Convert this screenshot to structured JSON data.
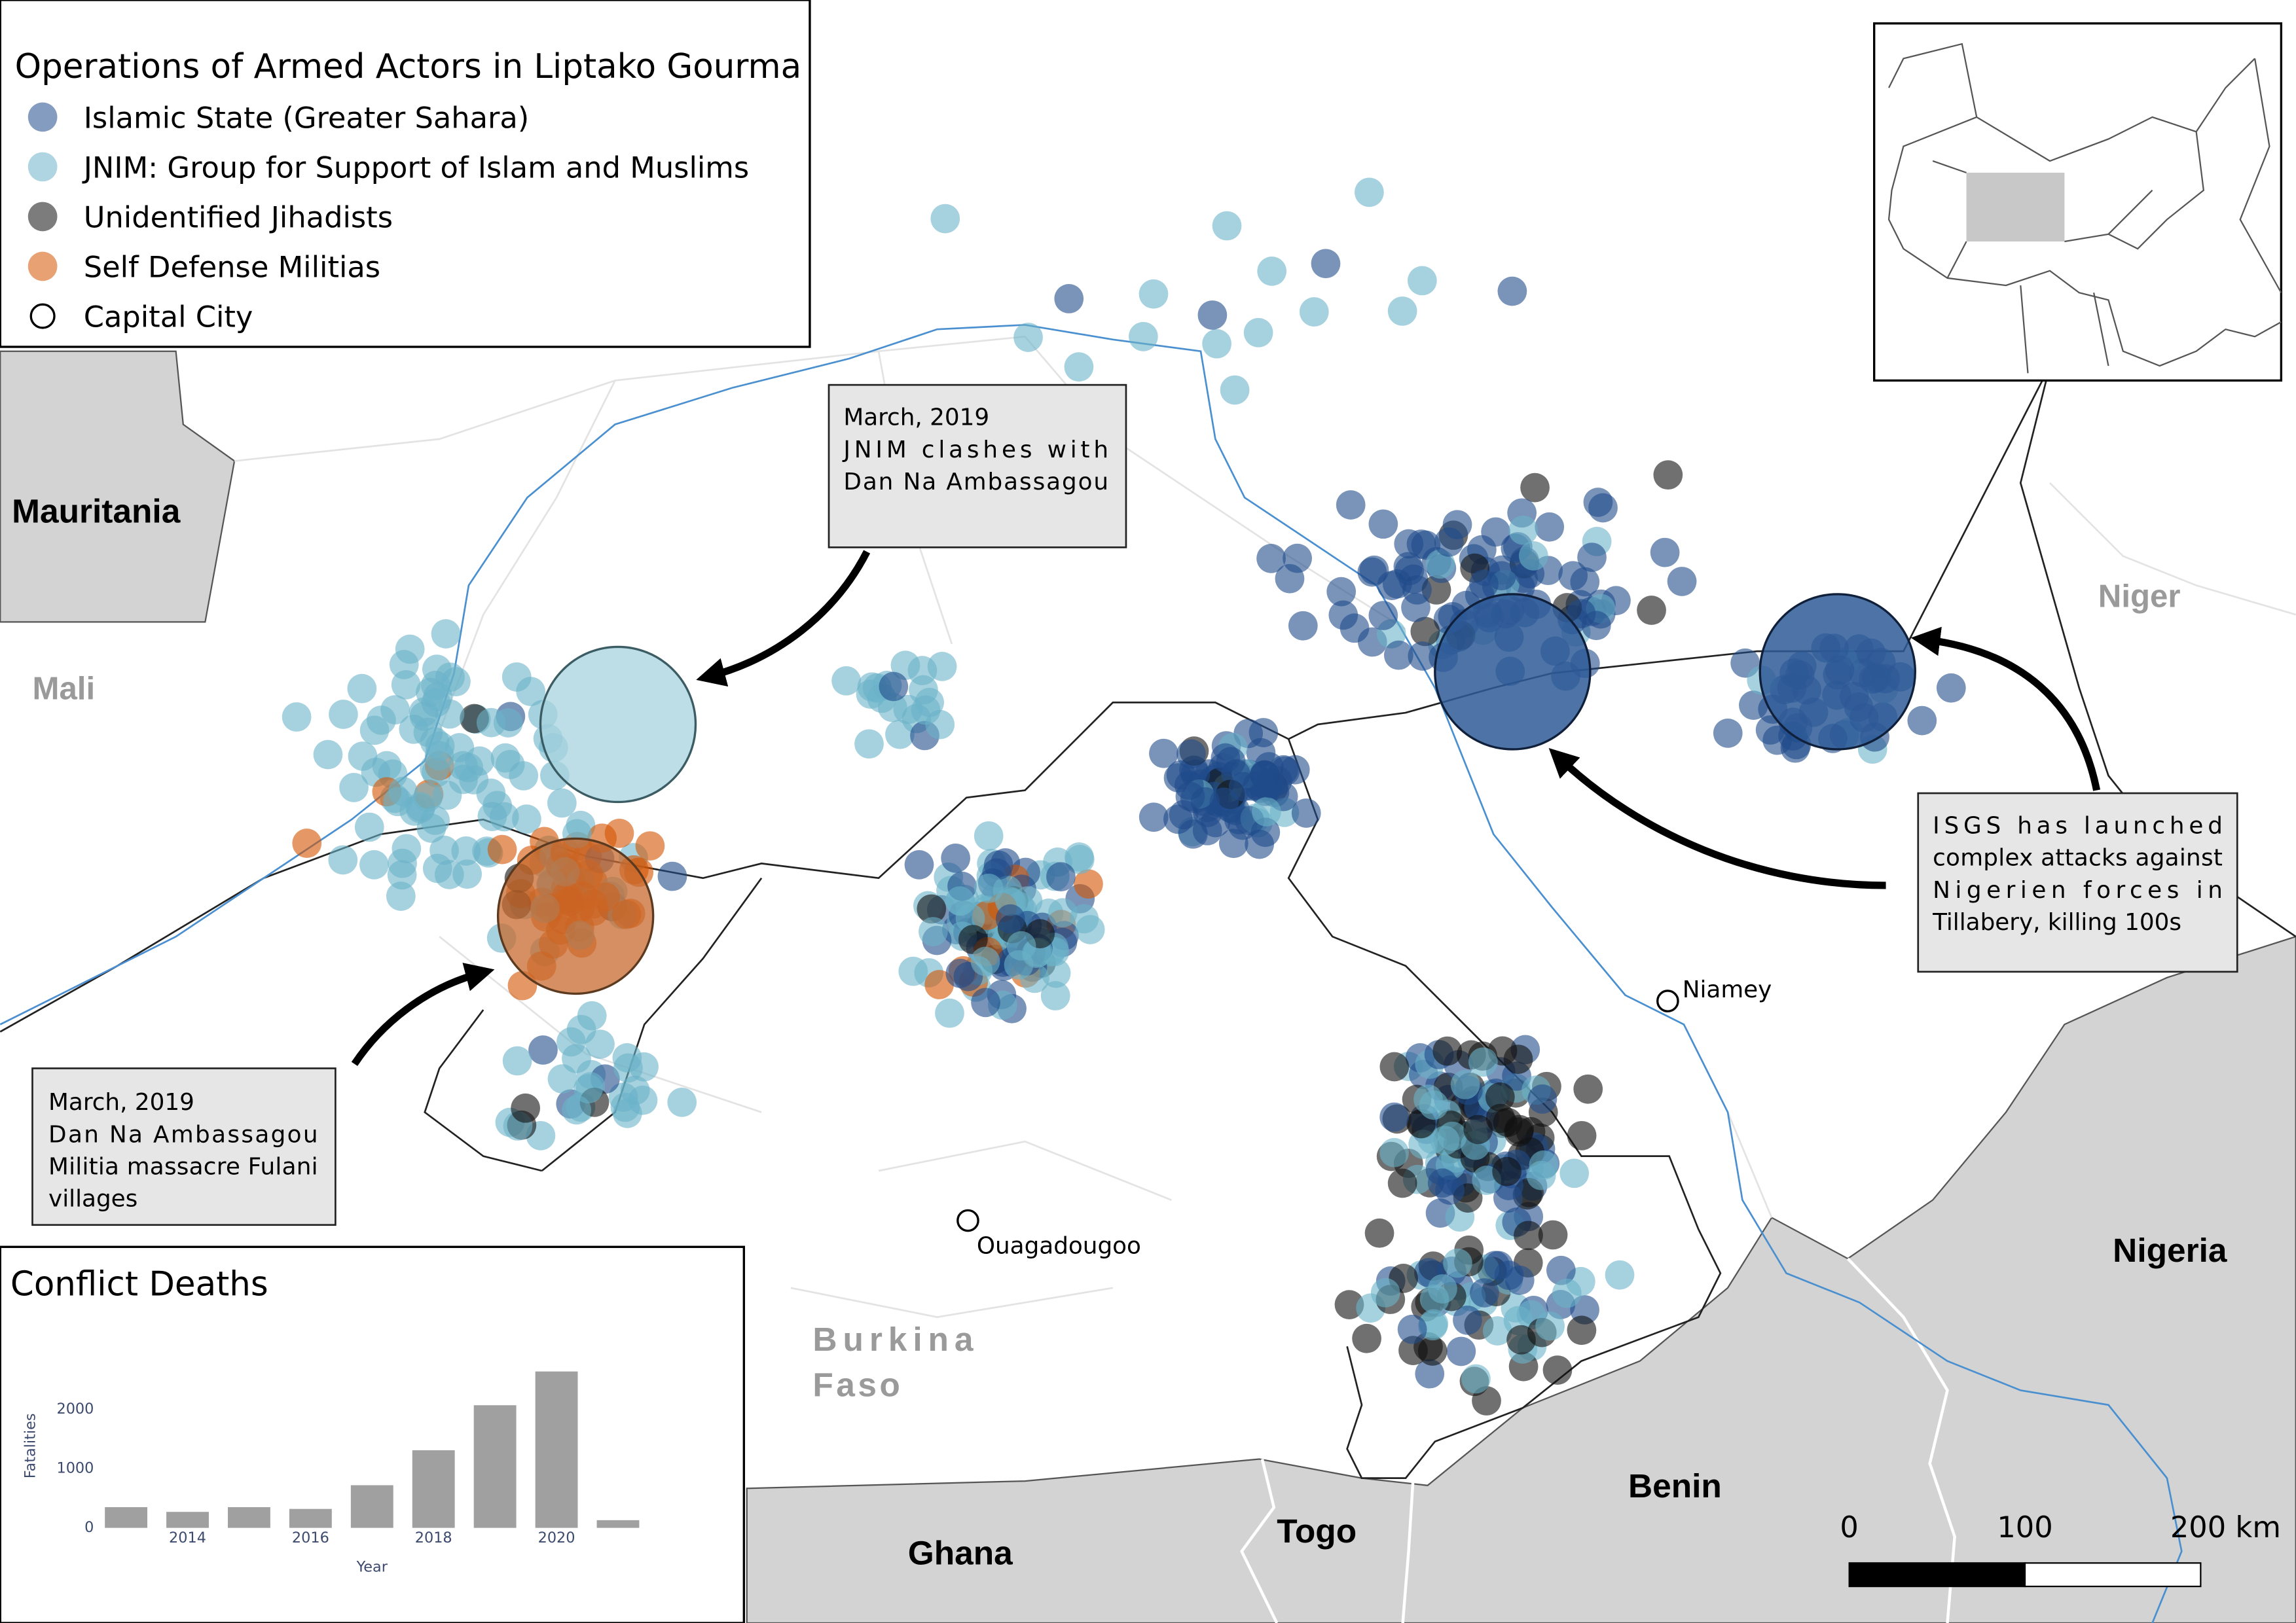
{
  "legend": {
    "title": "Operations of Armed Actors in Liptako Gourma",
    "items": [
      {
        "label": "Islamic State (Greater Sahara)",
        "color": "#1f4b8a"
      },
      {
        "label": "JNIM: Group for Support of Islam and Muslims",
        "color": "#6bb3c8"
      },
      {
        "label": "Unidentified Jihadists",
        "color": "#111111"
      },
      {
        "label": "Self Defense Militias",
        "color": "#d35400"
      }
    ],
    "capital": "Capital City"
  },
  "countries": {
    "mauritania": "Mauritania",
    "mali": "Mali",
    "niger": "Niger",
    "nigeria": "Nigeria",
    "burkina_faso": [
      "Burkina",
      "Faso"
    ],
    "ghana": "Ghana",
    "togo": "Togo",
    "benin": "Benin"
  },
  "cities": [
    "Niamey",
    "Ouagadougoo"
  ],
  "annotations": [
    {
      "lines": [
        "March, 2019",
        "JNIM clashes with",
        "Dan Na Ambassagou"
      ]
    },
    {
      "lines": [
        "March, 2019",
        "Dan Na Ambassagou",
        "Militia massacre Fulani",
        "villages"
      ]
    },
    {
      "lines": [
        "ISGS has launched",
        "complex attacks against",
        "Nigerien forces in",
        "Tillabery, killing 100s"
      ]
    }
  ],
  "scale_bar": {
    "labels": [
      "0",
      "100",
      "200 km"
    ]
  },
  "chart_data": {
    "type": "bar",
    "title": "Conflict Deaths",
    "x_label": "Year",
    "y_label": "Fatalities",
    "categories": [
      null,
      2014,
      null,
      2016,
      null,
      2018,
      null,
      2020,
      null
    ],
    "values": [
      350,
      270,
      350,
      320,
      720,
      1310,
      2070,
      2640,
      130
    ],
    "color": "#a0a0a0",
    "ylim": [
      0,
      2700
    ],
    "yticks": [
      0,
      1000,
      2000
    ]
  }
}
